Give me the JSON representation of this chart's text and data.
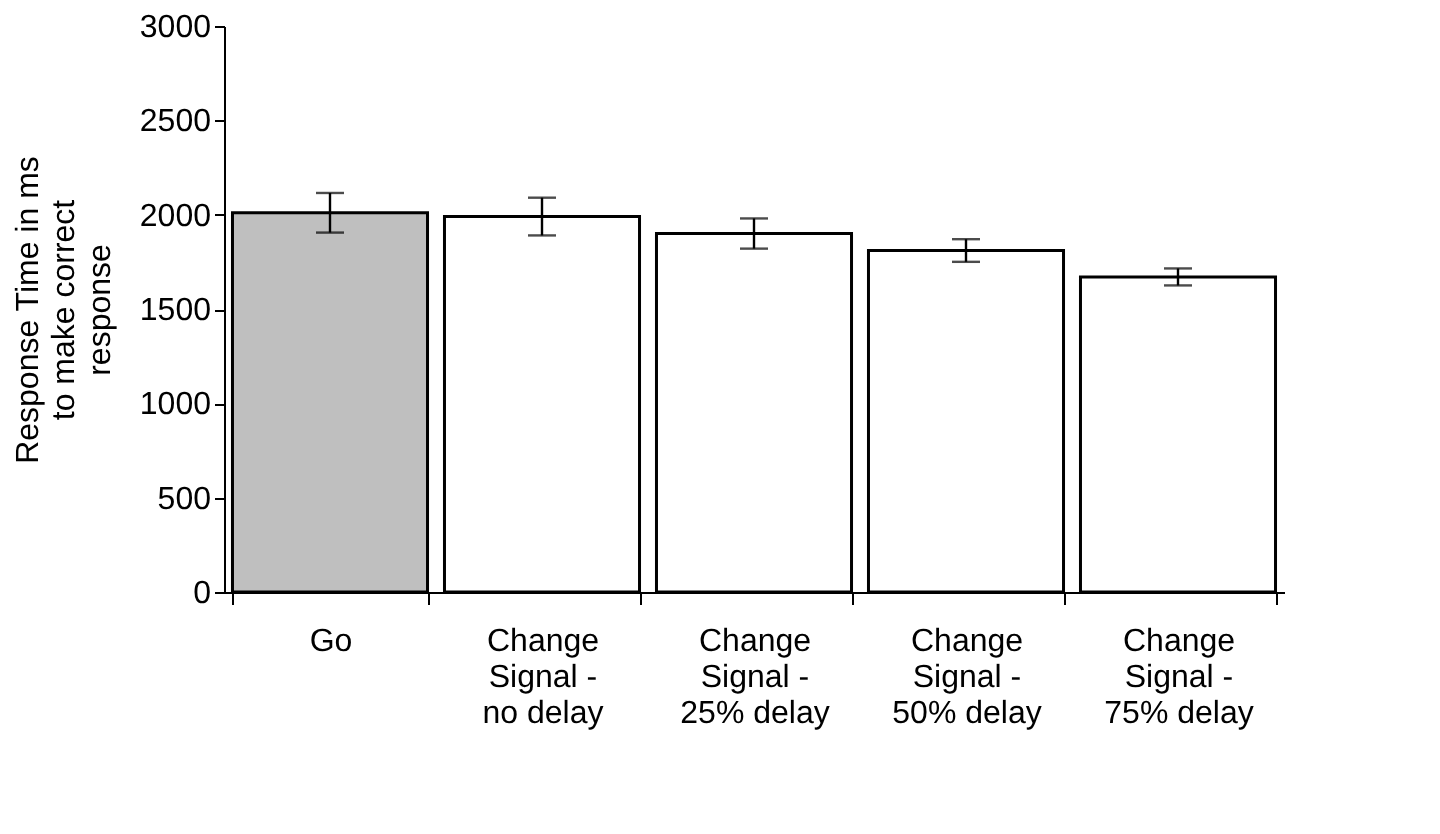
{
  "chart_data": {
    "type": "bar",
    "ylabel": "Response Time in ms to make correct response",
    "categories": [
      "Go",
      "Change Signal - no delay",
      "Change Signal - 25% delay",
      "Change Signal - 50% delay",
      "Change Signal - 75% delay"
    ],
    "values": [
      2010,
      1990,
      1900,
      1810,
      1670
    ],
    "errors": [
      105,
      100,
      80,
      60,
      45
    ],
    "colors": [
      "#bfbfbf",
      "#ffffff",
      "#ffffff",
      "#ffffff",
      "#ffffff"
    ],
    "ylim": [
      0,
      3000
    ],
    "yticks": [
      0,
      500,
      1000,
      1500,
      2000,
      2500,
      3000
    ],
    "grid": false
  }
}
